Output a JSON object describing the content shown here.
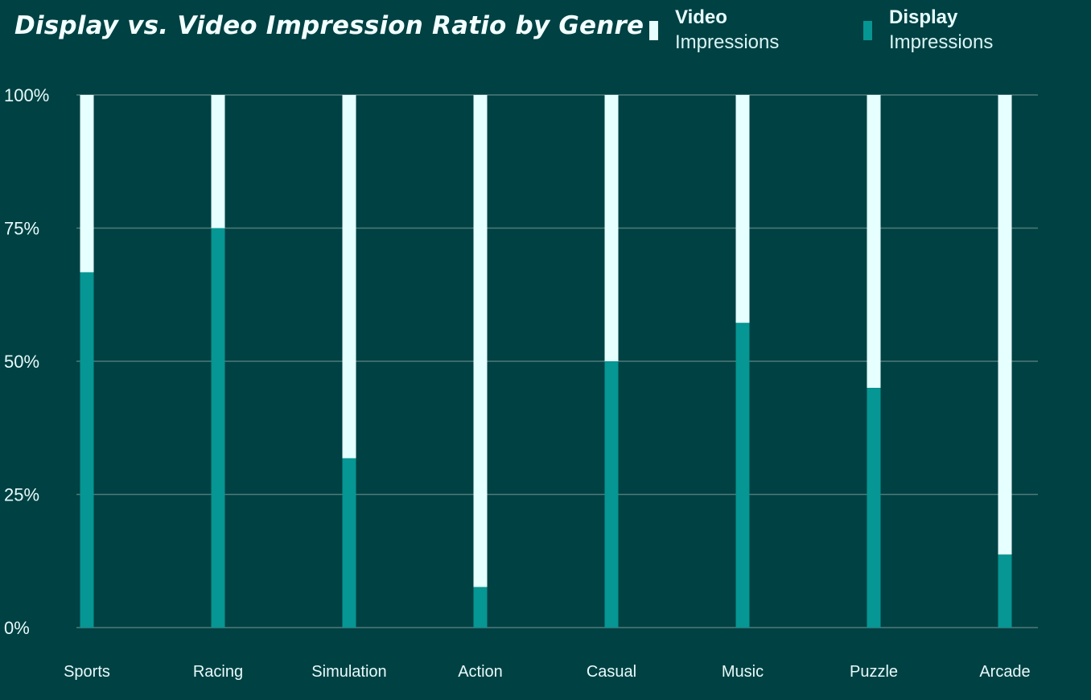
{
  "colors": {
    "background": "#004143",
    "video": "#e6ffff",
    "display": "#069693",
    "grid": "#4f7b7a"
  },
  "legend": {
    "video": {
      "title": "Video",
      "subtitle": "Impressions"
    },
    "display": {
      "title": "Display",
      "subtitle": "Impressions"
    }
  },
  "chart_data": {
    "type": "bar",
    "stacked": true,
    "title": "Display vs. Video Impression Ratio by Genre",
    "categories": [
      "Sports",
      "Racing",
      "Simulation",
      "Action",
      "Casual",
      "Music",
      "Puzzle",
      "Arcade"
    ],
    "series": [
      {
        "name": "Display Impressions",
        "values": [
          66.7,
          75,
          31.8,
          7.6,
          50,
          57.2,
          45,
          13.7
        ]
      },
      {
        "name": "Video Impressions",
        "values": [
          33.3,
          25,
          68.2,
          92.4,
          50,
          42.8,
          55,
          86.3
        ]
      }
    ],
    "ylim": [
      0,
      100
    ],
    "yticks": [
      "0%",
      "25%",
      "50%",
      "75%",
      "100%"
    ],
    "ytick_values": [
      0,
      25,
      50,
      75,
      100
    ],
    "grid": true,
    "legend_position": "top-right",
    "xlabel": "",
    "ylabel": ""
  }
}
